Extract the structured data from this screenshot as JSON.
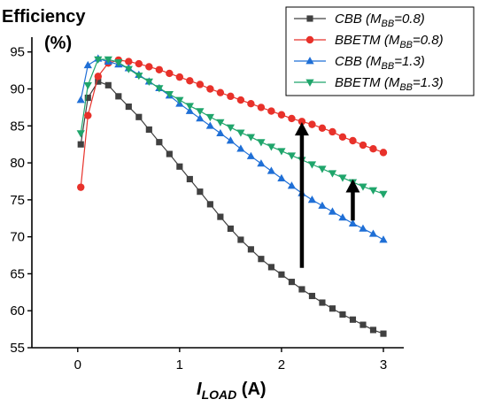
{
  "chart_data": {
    "type": "line",
    "ylabel_line1": "Efficiency",
    "ylabel_line2": "(%)",
    "xlabel_main": "I",
    "xlabel_sub": "LOAD",
    "xlabel_unit": " (A)",
    "xlim": [
      -0.45,
      3.2
    ],
    "ylim": [
      55,
      97
    ],
    "xticks": [
      0,
      1,
      2,
      3
    ],
    "yticks": [
      55,
      60,
      65,
      70,
      75,
      80,
      85,
      90,
      95
    ],
    "grid": false,
    "legend_position": "top-right",
    "series": [
      {
        "name": "CBB (MBB=0.8)",
        "legend_base": "CBB (M",
        "legend_sub": "BB",
        "legend_tail": "=0.8)",
        "color": "#404040",
        "marker": "square",
        "x": [
          0.03,
          0.1,
          0.2,
          0.3,
          0.4,
          0.5,
          0.6,
          0.7,
          0.8,
          0.9,
          1.0,
          1.1,
          1.2,
          1.3,
          1.4,
          1.5,
          1.6,
          1.7,
          1.8,
          1.9,
          2.0,
          2.1,
          2.2,
          2.3,
          2.4,
          2.5,
          2.6,
          2.7,
          2.8,
          2.9,
          3.0
        ],
        "y": [
          82.5,
          88.8,
          91.0,
          90.5,
          89.0,
          87.6,
          86.2,
          84.5,
          82.8,
          81.2,
          79.5,
          77.8,
          76.1,
          74.4,
          72.7,
          71.1,
          69.6,
          68.3,
          67.0,
          65.9,
          64.9,
          63.9,
          62.9,
          62.0,
          61.1,
          60.3,
          59.5,
          58.8,
          58.1,
          57.4,
          56.9
        ]
      },
      {
        "name": "BBETM (MBB=0.8)",
        "legend_base": "BBETM (M",
        "legend_sub": "BB",
        "legend_tail": "=0.8)",
        "color": "#e8312a",
        "marker": "circle",
        "x": [
          0.03,
          0.1,
          0.2,
          0.3,
          0.4,
          0.5,
          0.6,
          0.7,
          0.8,
          0.9,
          1.0,
          1.1,
          1.2,
          1.3,
          1.4,
          1.5,
          1.6,
          1.7,
          1.8,
          1.9,
          2.0,
          2.1,
          2.2,
          2.3,
          2.4,
          2.5,
          2.6,
          2.7,
          2.8,
          2.9,
          3.0
        ],
        "y": [
          76.7,
          86.4,
          91.7,
          93.5,
          93.9,
          93.7,
          93.4,
          93.0,
          92.6,
          92.1,
          91.6,
          91.1,
          90.6,
          90.0,
          89.5,
          89.0,
          88.5,
          88.0,
          87.5,
          87.0,
          86.5,
          86.0,
          85.6,
          85.2,
          84.7,
          84.2,
          83.5,
          83.0,
          82.4,
          81.9,
          81.4
        ]
      },
      {
        "name": "CBB (MBB=1.3)",
        "legend_base": "CBB (M",
        "legend_sub": "BB",
        "legend_tail": "=1.3)",
        "color": "#1f6fd6",
        "marker": "triangle-up",
        "x": [
          0.03,
          0.1,
          0.2,
          0.3,
          0.4,
          0.5,
          0.6,
          0.7,
          0.8,
          0.9,
          1.0,
          1.1,
          1.2,
          1.3,
          1.4,
          1.5,
          1.6,
          1.7,
          1.8,
          1.9,
          2.0,
          2.1,
          2.2,
          2.3,
          2.4,
          2.5,
          2.6,
          2.7,
          2.8,
          2.9,
          3.0
        ],
        "y": [
          88.5,
          93.2,
          94.1,
          93.7,
          93.3,
          92.8,
          91.9,
          91.0,
          90.1,
          89.1,
          88.0,
          87.0,
          86.0,
          85.0,
          84.0,
          83.0,
          81.9,
          80.9,
          79.9,
          78.9,
          77.9,
          76.9,
          75.9,
          75.0,
          74.2,
          73.4,
          72.6,
          71.8,
          71.1,
          70.4,
          69.6
        ]
      },
      {
        "name": "BBETM (MBB=1.3)",
        "legend_base": "BBETM (M",
        "legend_sub": "BB",
        "legend_tail": "=1.3)",
        "color": "#1fa56b",
        "marker": "triangle-down",
        "x": [
          0.03,
          0.1,
          0.2,
          0.3,
          0.4,
          0.5,
          0.6,
          0.7,
          0.8,
          0.9,
          1.0,
          1.1,
          1.2,
          1.3,
          1.4,
          1.5,
          1.6,
          1.7,
          1.8,
          1.9,
          2.0,
          2.1,
          2.2,
          2.3,
          2.4,
          2.5,
          2.6,
          2.7,
          2.8,
          2.9,
          3.0
        ],
        "y": [
          84.0,
          90.5,
          94.0,
          94.0,
          93.6,
          92.7,
          91.8,
          91.0,
          90.1,
          89.3,
          88.5,
          87.7,
          87.0,
          86.2,
          85.5,
          84.8,
          84.1,
          83.5,
          82.8,
          82.2,
          81.6,
          81.0,
          80.4,
          79.8,
          79.2,
          78.6,
          78.0,
          77.4,
          76.8,
          76.3,
          75.8
        ]
      }
    ],
    "annotations": [
      {
        "type": "arrow",
        "x": 2.2,
        "y_from": 65.8,
        "y_to": 85.5,
        "color": "#000000"
      },
      {
        "type": "arrow",
        "x": 2.7,
        "y_from": 72.2,
        "y_to": 77.8,
        "color": "#000000"
      }
    ]
  }
}
